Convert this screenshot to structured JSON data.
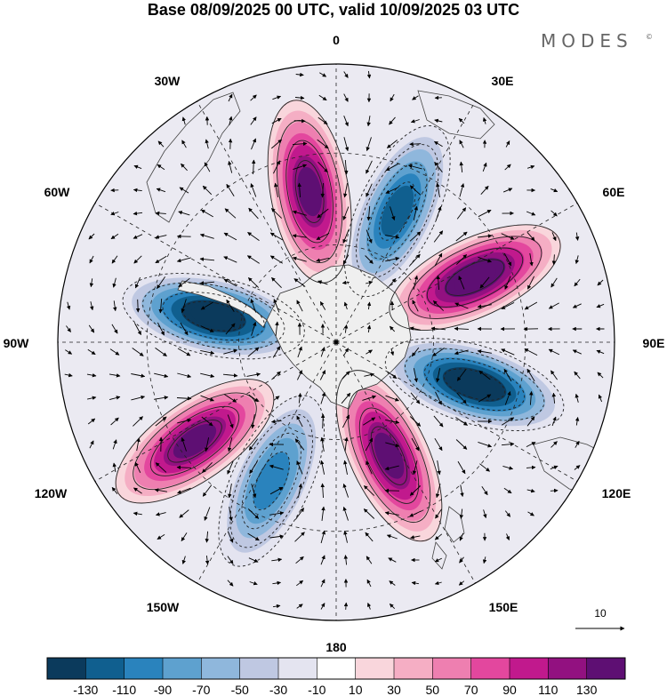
{
  "title": "Base 08/09/2025 00 UTC, valid 10/09/2025 03 UTC",
  "brand": {
    "name": "MODES",
    "mark": "©"
  },
  "longitude_labels": [
    {
      "text": "0",
      "lon": 0
    },
    {
      "text": "30E",
      "lon": 30
    },
    {
      "text": "60E",
      "lon": 60
    },
    {
      "text": "90E",
      "lon": 90
    },
    {
      "text": "120E",
      "lon": 120
    },
    {
      "text": "150E",
      "lon": 150
    },
    {
      "text": "180",
      "lon": 180
    },
    {
      "text": "150W",
      "lon": -150
    },
    {
      "text": "120W",
      "lon": -120
    },
    {
      "text": "90W",
      "lon": -90
    },
    {
      "text": "60W",
      "lon": -60
    },
    {
      "text": "30W",
      "lon": -30
    }
  ],
  "reference_vector": {
    "label": "10"
  },
  "colorbar": {
    "ticks": [
      "-130",
      "-110",
      "-90",
      "-70",
      "-50",
      "-30",
      "-10",
      "10",
      "30",
      "50",
      "70",
      "90",
      "110",
      "130"
    ],
    "colors": [
      "#0b3a5c",
      "#105f8f",
      "#2a83bd",
      "#5ea1cf",
      "#8fb7dc",
      "#bfc8e2",
      "#e4e4f0",
      "#ffffff",
      "#f9d6dc",
      "#f5aec4",
      "#ee7fb0",
      "#e3479e",
      "#c1198d",
      "#921180",
      "#5e0f73"
    ]
  },
  "chart_data": {
    "type": "polar-stereographic anomaly map",
    "projection": "South polar stereographic",
    "title": "Base 08/09/2025 00 UTC, valid 10/09/2025 03 UTC",
    "variable_units": "unlabeled anomaly field, colour scale -130 to 130",
    "contour_levels": [
      -130,
      -110,
      -90,
      -70,
      -50,
      -30,
      -10,
      10,
      30,
      50,
      70,
      90,
      110,
      130
    ],
    "centers": [
      {
        "sign": "positive",
        "lon": -10,
        "lat_dist": 0.55,
        "peak": 110
      },
      {
        "sign": "negative",
        "lon": 25,
        "lat_dist": 0.52,
        "peak": -90
      },
      {
        "sign": "positive",
        "lon": 65,
        "lat_dist": 0.55,
        "peak": 130
      },
      {
        "sign": "negative",
        "lon": 107,
        "lat_dist": 0.52,
        "peak": -130
      },
      {
        "sign": "positive",
        "lon": 155,
        "lat_dist": 0.45,
        "peak": 110
      },
      {
        "sign": "negative",
        "lon": -155,
        "lat_dist": 0.55,
        "peak": -70
      },
      {
        "sign": "positive",
        "lon": -125,
        "lat_dist": 0.62,
        "peak": 110
      },
      {
        "sign": "negative",
        "lon": -78,
        "lat_dist": 0.45,
        "peak": -130
      }
    ],
    "wind_vectors": "shown as arrows, reference vector length 10"
  }
}
